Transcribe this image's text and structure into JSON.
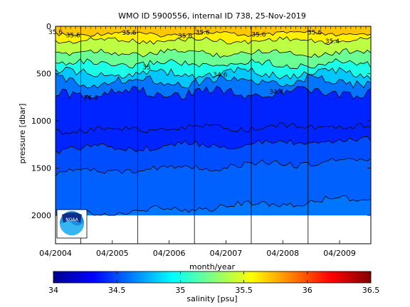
{
  "chart_data": {
    "type": "heatmap",
    "title": "WMO ID 5900556, internal ID 738, 25-Nov-2019",
    "xlabel": "month/year",
    "ylabel": "pressure [dbar]",
    "x_tick_labels": [
      "04/2004",
      "04/2005",
      "04/2006",
      "04/2007",
      "04/2008",
      "04/2009"
    ],
    "y_ticks": [
      0,
      500,
      1000,
      1500,
      2000
    ],
    "ylim": [
      2300,
      0
    ],
    "colorbar": {
      "label": "salinity [psu]",
      "range": [
        34,
        36.5
      ],
      "ticks": [
        34,
        34.5,
        35,
        35.5,
        36,
        36.5
      ],
      "tick_labels": [
        "34",
        "34.5",
        "35",
        "35.5",
        "36",
        "36.5"
      ]
    },
    "contour_labels": [
      {
        "text": "35.6",
        "salinity": 35.6
      },
      {
        "text": "35.6",
        "salinity": 35.6
      },
      {
        "text": "35.6",
        "salinity": 35.6
      },
      {
        "text": "35.6",
        "salinity": 35.6
      },
      {
        "text": "35.6",
        "salinity": 35.6
      },
      {
        "text": "35.6",
        "salinity": 35.6
      },
      {
        "text": "35.6",
        "salinity": 35.6
      },
      {
        "text": "35.4",
        "salinity": 35.4
      },
      {
        "text": "35",
        "salinity": 35
      },
      {
        "text": "34.4",
        "salinity": 34.4
      },
      {
        "text": "34.4",
        "salinity": 34.4
      },
      {
        "text": "34.6",
        "salinity": 34.6
      }
    ],
    "layers_approx": [
      {
        "salinity": 35.6,
        "pressure": 80
      },
      {
        "salinity": 35.4,
        "pressure": 150
      },
      {
        "salinity": 35.2,
        "pressure": 280
      },
      {
        "salinity": 35.0,
        "pressure": 400
      },
      {
        "salinity": 34.8,
        "pressure": 500
      },
      {
        "salinity": 34.6,
        "pressure": 580
      },
      {
        "salinity": 34.4,
        "pressure": 700
      },
      {
        "salinity": 34.4,
        "pressure": 1100
      },
      {
        "salinity": 34.5,
        "pressure": 1300
      },
      {
        "salinity": 34.55,
        "pressure": 1550
      },
      {
        "salinity": 34.6,
        "pressure": 2000
      }
    ],
    "grid": false,
    "logo_text": "NOAA",
    "logo_position": "bottom-left"
  }
}
